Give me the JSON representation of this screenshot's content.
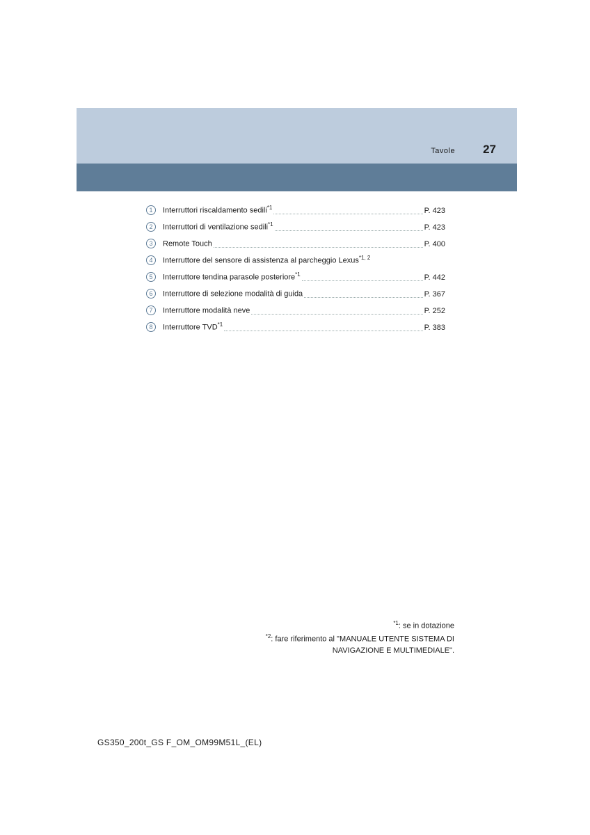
{
  "header": {
    "section_label": "Tavole",
    "page_number": "27",
    "light_bg": "#bdccdd",
    "dark_bg": "#5f7d98"
  },
  "items": [
    {
      "n": "1",
      "label": "Interruttori riscaldamento sedili",
      "sup": "*1",
      "page": "P. 423"
    },
    {
      "n": "2",
      "label": "Interruttori di ventilazione sedili",
      "sup": "*1",
      "page": "P. 423"
    },
    {
      "n": "3",
      "label": "Remote Touch",
      "sup": "",
      "page": "P. 400"
    },
    {
      "n": "4",
      "label": "Interruttore del sensore di assistenza al parcheggio Lexus",
      "sup": "*1, 2",
      "page": ""
    },
    {
      "n": "5",
      "label": "Interruttore tendina parasole posteriore",
      "sup": "*1",
      "page": "P. 442"
    },
    {
      "n": "6",
      "label": "Interruttore di selezione modalità di guida",
      "sup": "",
      "page": "P. 367"
    },
    {
      "n": "7",
      "label": "Interruttore modalità neve",
      "sup": "",
      "page": "P. 252"
    },
    {
      "n": "8",
      "label": "Interruttore TVD",
      "sup": "*1",
      "page": "P. 383"
    }
  ],
  "footnotes": {
    "f1_sup": "*1",
    "f1_text": ": se in dotazione",
    "f2_sup": "*2",
    "f2_text_a": ": fare riferimento al \"MANUALE UTENTE SISTEMA DI",
    "f2_text_b": "NAVIGAZIONE E MULTIMEDIALE\"."
  },
  "doc_id": "GS350_200t_GS F_OM_OM99M51L_(EL)"
}
